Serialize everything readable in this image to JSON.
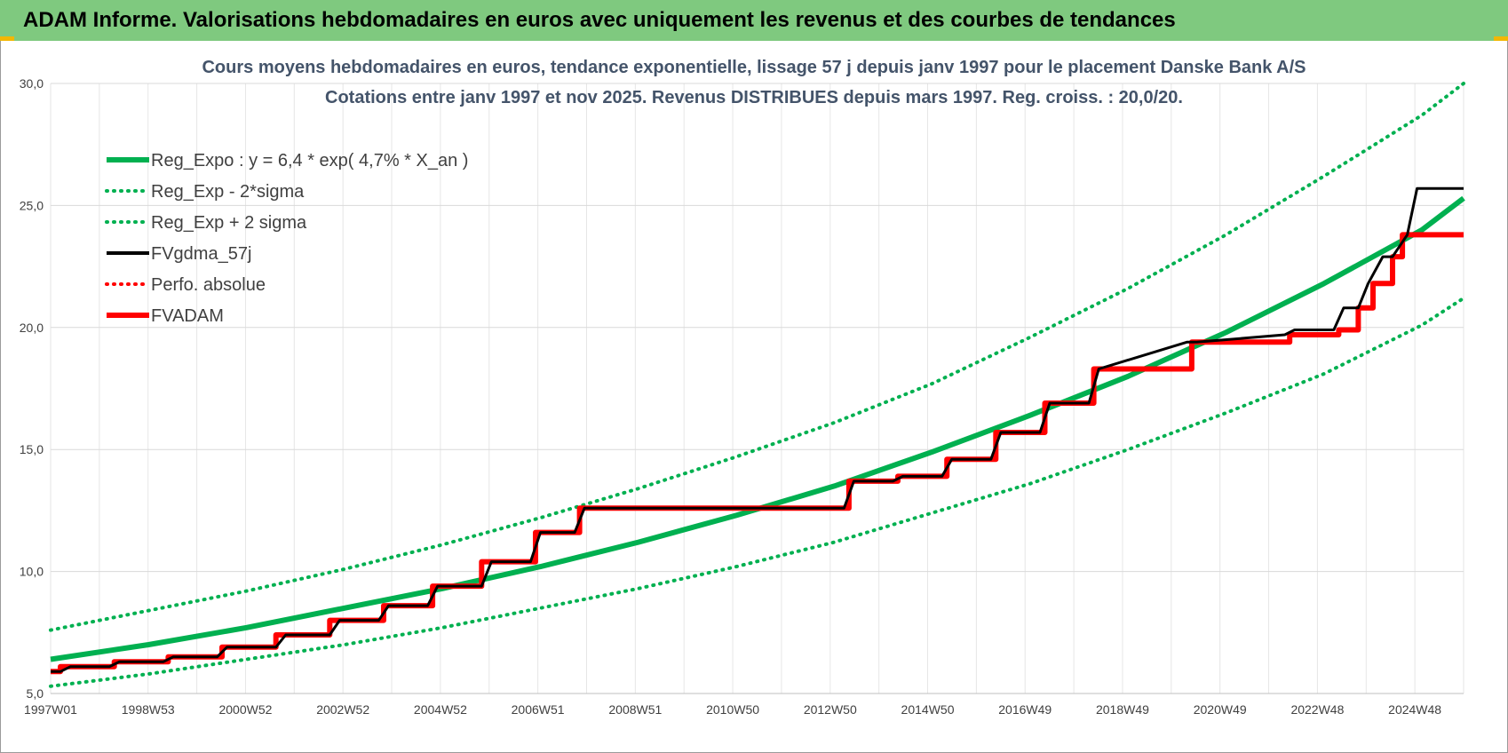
{
  "page": {
    "banner_title": "ADAM Informe. Valorisations hebdomadaires en euros avec uniquement les revenus et des courbes de tendances",
    "colors": {
      "banner": "#7fc97f",
      "accent": "#f2b705"
    }
  },
  "chart_data": {
    "type": "line",
    "title": "Cours moyens hebdomadaires en euros, tendance exponentielle, lissage 57 j depuis janv 1997  pour le placement Danske Bank A/S",
    "subtitle": "Cotations entre janv 1997 et nov 2025. Revenus DISTRIBUES depuis mars 1997.  Reg. croiss. : 20,0/20.",
    "xlabel": "",
    "ylabel": "",
    "ylim": [
      5,
      30
    ],
    "xlim": [
      1997.0,
      2025.85
    ],
    "y_ticks": [
      "5,0",
      "10,0",
      "15,0",
      "20,0",
      "25,0",
      "30,0"
    ],
    "x_ticks": [
      "1997W01",
      "1998W53",
      "2000W52",
      "2002W52",
      "2004W52",
      "2006W51",
      "2008W51",
      "2010W50",
      "2012W50",
      "2014W50",
      "2016W49",
      "2018W49",
      "2020W49",
      "2022W48",
      "2024W48"
    ],
    "grid": true,
    "legend_position": "top-left",
    "legend": [
      {
        "label": "Reg_Expo : y = 6,4 * exp( 4,7% *  X_an )",
        "color": "#00b050",
        "style": "solid"
      },
      {
        "label": "Reg_Exp - 2*sigma",
        "color": "#00b050",
        "style": "dotted"
      },
      {
        "label": "Reg_Exp + 2 sigma",
        "color": "#00b050",
        "style": "dotted"
      },
      {
        "label": "FVgdma_57j",
        "color": "#000000",
        "style": "solid"
      },
      {
        "label": "Perfo. absolue",
        "color": "#ff0000",
        "style": "dotted"
      },
      {
        "label": "FVADAM",
        "color": "#ff0000",
        "style": "solid"
      }
    ],
    "series": [
      {
        "name": "Reg_Expo : y = 6,4 * exp( 4,7% *  X_an )",
        "x": [
          1997.0,
          1999.0,
          2001.0,
          2003.0,
          2005.0,
          2007.0,
          2009.0,
          2011.0,
          2013.0,
          2015.0,
          2017.0,
          2019.0,
          2021.0,
          2023.0,
          2025.0,
          2025.85
        ],
        "values": [
          6.4,
          7.0,
          7.7,
          8.5,
          9.3,
          10.2,
          11.2,
          12.3,
          13.5,
          14.9,
          16.4,
          18.0,
          19.8,
          21.8,
          24.0,
          25.3
        ]
      },
      {
        "name": "Reg_Exp - 2*sigma",
        "x": [
          1997.0,
          1999.0,
          2001.0,
          2003.0,
          2005.0,
          2007.0,
          2009.0,
          2011.0,
          2013.0,
          2015.0,
          2017.0,
          2019.0,
          2021.0,
          2023.0,
          2025.0,
          2025.85
        ],
        "values": [
          5.3,
          5.8,
          6.4,
          7.0,
          7.7,
          8.5,
          9.3,
          10.2,
          11.2,
          12.4,
          13.6,
          15.0,
          16.5,
          18.1,
          20.1,
          21.2
        ]
      },
      {
        "name": "Reg_Exp + 2 sigma",
        "x": [
          1997.0,
          1999.0,
          2001.0,
          2003.0,
          2005.0,
          2007.0,
          2009.0,
          2011.0,
          2013.0,
          2015.0,
          2017.0,
          2019.0,
          2021.0,
          2023.0,
          2025.0,
          2025.85
        ],
        "values": [
          7.6,
          8.4,
          9.2,
          10.1,
          11.1,
          12.2,
          13.4,
          14.7,
          16.1,
          17.7,
          19.6,
          21.6,
          23.8,
          26.2,
          28.7,
          30.0
        ]
      },
      {
        "name": "FVgdma_57j",
        "x": [
          1997.0,
          1997.2,
          1997.4,
          1998.2,
          1998.4,
          1999.3,
          1999.5,
          2000.4,
          2000.6,
          2001.6,
          2001.8,
          2002.7,
          2002.9,
          2003.7,
          2003.9,
          2004.7,
          2004.9,
          2005.8,
          2006.0,
          2006.8,
          2007.0,
          2007.7,
          2007.9,
          2013.2,
          2013.4,
          2014.2,
          2014.4,
          2015.2,
          2015.4,
          2016.2,
          2016.4,
          2017.2,
          2017.4,
          2018.2,
          2018.4,
          2020.2,
          2020.4,
          2022.2,
          2022.4,
          2023.2,
          2023.4,
          2023.7,
          2023.9,
          2024.2,
          2024.4,
          2024.7,
          2024.9,
          2025.85
        ],
        "values": [
          5.9,
          5.9,
          6.1,
          6.1,
          6.3,
          6.3,
          6.5,
          6.5,
          6.9,
          6.9,
          7.4,
          7.4,
          8.0,
          8.0,
          8.6,
          8.6,
          9.4,
          9.4,
          10.4,
          10.4,
          11.6,
          11.6,
          12.6,
          12.6,
          13.7,
          13.7,
          13.9,
          13.9,
          14.6,
          14.6,
          15.7,
          15.7,
          16.9,
          16.9,
          18.3,
          19.4,
          19.4,
          19.7,
          19.9,
          19.9,
          20.8,
          20.8,
          21.8,
          22.9,
          22.9,
          23.8,
          25.7,
          25.7
        ]
      },
      {
        "name": "Perfo. absolue",
        "x": [],
        "values": []
      },
      {
        "name": "FVADAM",
        "x": [
          1997.0,
          1997.2,
          1997.2,
          1998.3,
          1998.3,
          1999.4,
          1999.4,
          2000.5,
          2000.5,
          2001.6,
          2001.6,
          2002.7,
          2002.7,
          2003.8,
          2003.8,
          2004.8,
          2004.8,
          2005.8,
          2005.8,
          2006.9,
          2006.9,
          2007.8,
          2007.8,
          2013.3,
          2013.3,
          2014.3,
          2014.3,
          2015.3,
          2015.3,
          2016.3,
          2016.3,
          2017.3,
          2017.3,
          2018.3,
          2018.3,
          2020.3,
          2020.3,
          2022.3,
          2022.3,
          2023.3,
          2023.3,
          2023.7,
          2023.7,
          2024.0,
          2024.0,
          2024.4,
          2024.4,
          2024.6,
          2024.6,
          2025.85
        ],
        "values": [
          5.9,
          5.9,
          6.1,
          6.1,
          6.3,
          6.3,
          6.5,
          6.5,
          6.9,
          6.9,
          7.4,
          7.4,
          8.0,
          8.0,
          8.6,
          8.6,
          9.4,
          9.4,
          10.4,
          10.4,
          11.6,
          11.6,
          12.6,
          12.6,
          13.7,
          13.7,
          13.9,
          13.9,
          14.6,
          14.6,
          15.7,
          15.7,
          16.9,
          16.9,
          18.3,
          18.3,
          19.4,
          19.4,
          19.7,
          19.7,
          19.9,
          19.9,
          20.8,
          20.8,
          21.8,
          21.8,
          22.9,
          22.9,
          23.8,
          23.8
        ]
      }
    ]
  }
}
